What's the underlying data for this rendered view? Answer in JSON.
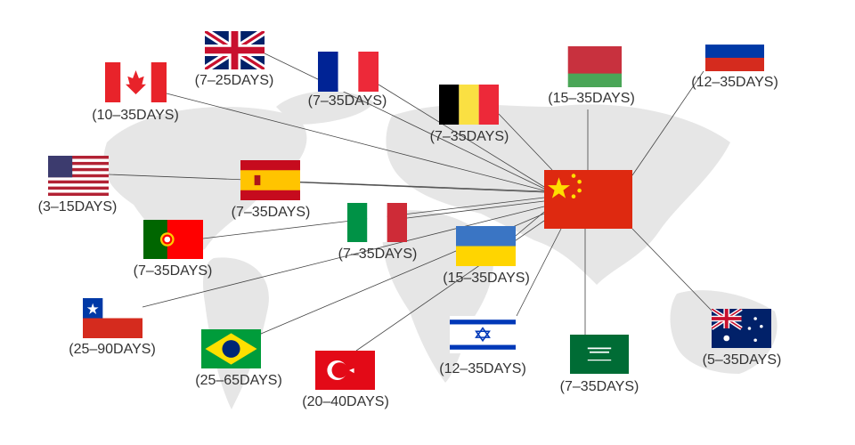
{
  "origin": {
    "country": "China",
    "flag": "china-flag"
  },
  "destinations": [
    {
      "country": "United Kingdom",
      "days": "(7–25DAYS)"
    },
    {
      "country": "Canada",
      "days": "(10–35DAYS)"
    },
    {
      "country": "France",
      "days": "(7–35DAYS)"
    },
    {
      "country": "Belgium",
      "days": "(7–35DAYS)"
    },
    {
      "country": "Belarus",
      "days": "(15–35DAYS)"
    },
    {
      "country": "Russia",
      "days": "(12–35DAYS)"
    },
    {
      "country": "United States",
      "days": "(3–15DAYS)"
    },
    {
      "country": "Spain",
      "days": "(7–35DAYS)"
    },
    {
      "country": "Portugal",
      "days": "(7–35DAYS)"
    },
    {
      "country": "Italy",
      "days": "(7–35DAYS)"
    },
    {
      "country": "Ukraine",
      "days": "(15–35DAYS)"
    },
    {
      "country": "Chile",
      "days": "(25–90DAYS)"
    },
    {
      "country": "Brazil",
      "days": "(25–65DAYS)"
    },
    {
      "country": "Turkey",
      "days": "(20–40DAYS)"
    },
    {
      "country": "Israel",
      "days": "(12–35DAYS)"
    },
    {
      "country": "Saudi Arabia",
      "days": "(7–35DAYS)"
    },
    {
      "country": "Australia",
      "days": "(5–35DAYS)"
    }
  ],
  "colors": {
    "map": "#e4e4e4",
    "line": "#444444",
    "text": "#333333"
  }
}
